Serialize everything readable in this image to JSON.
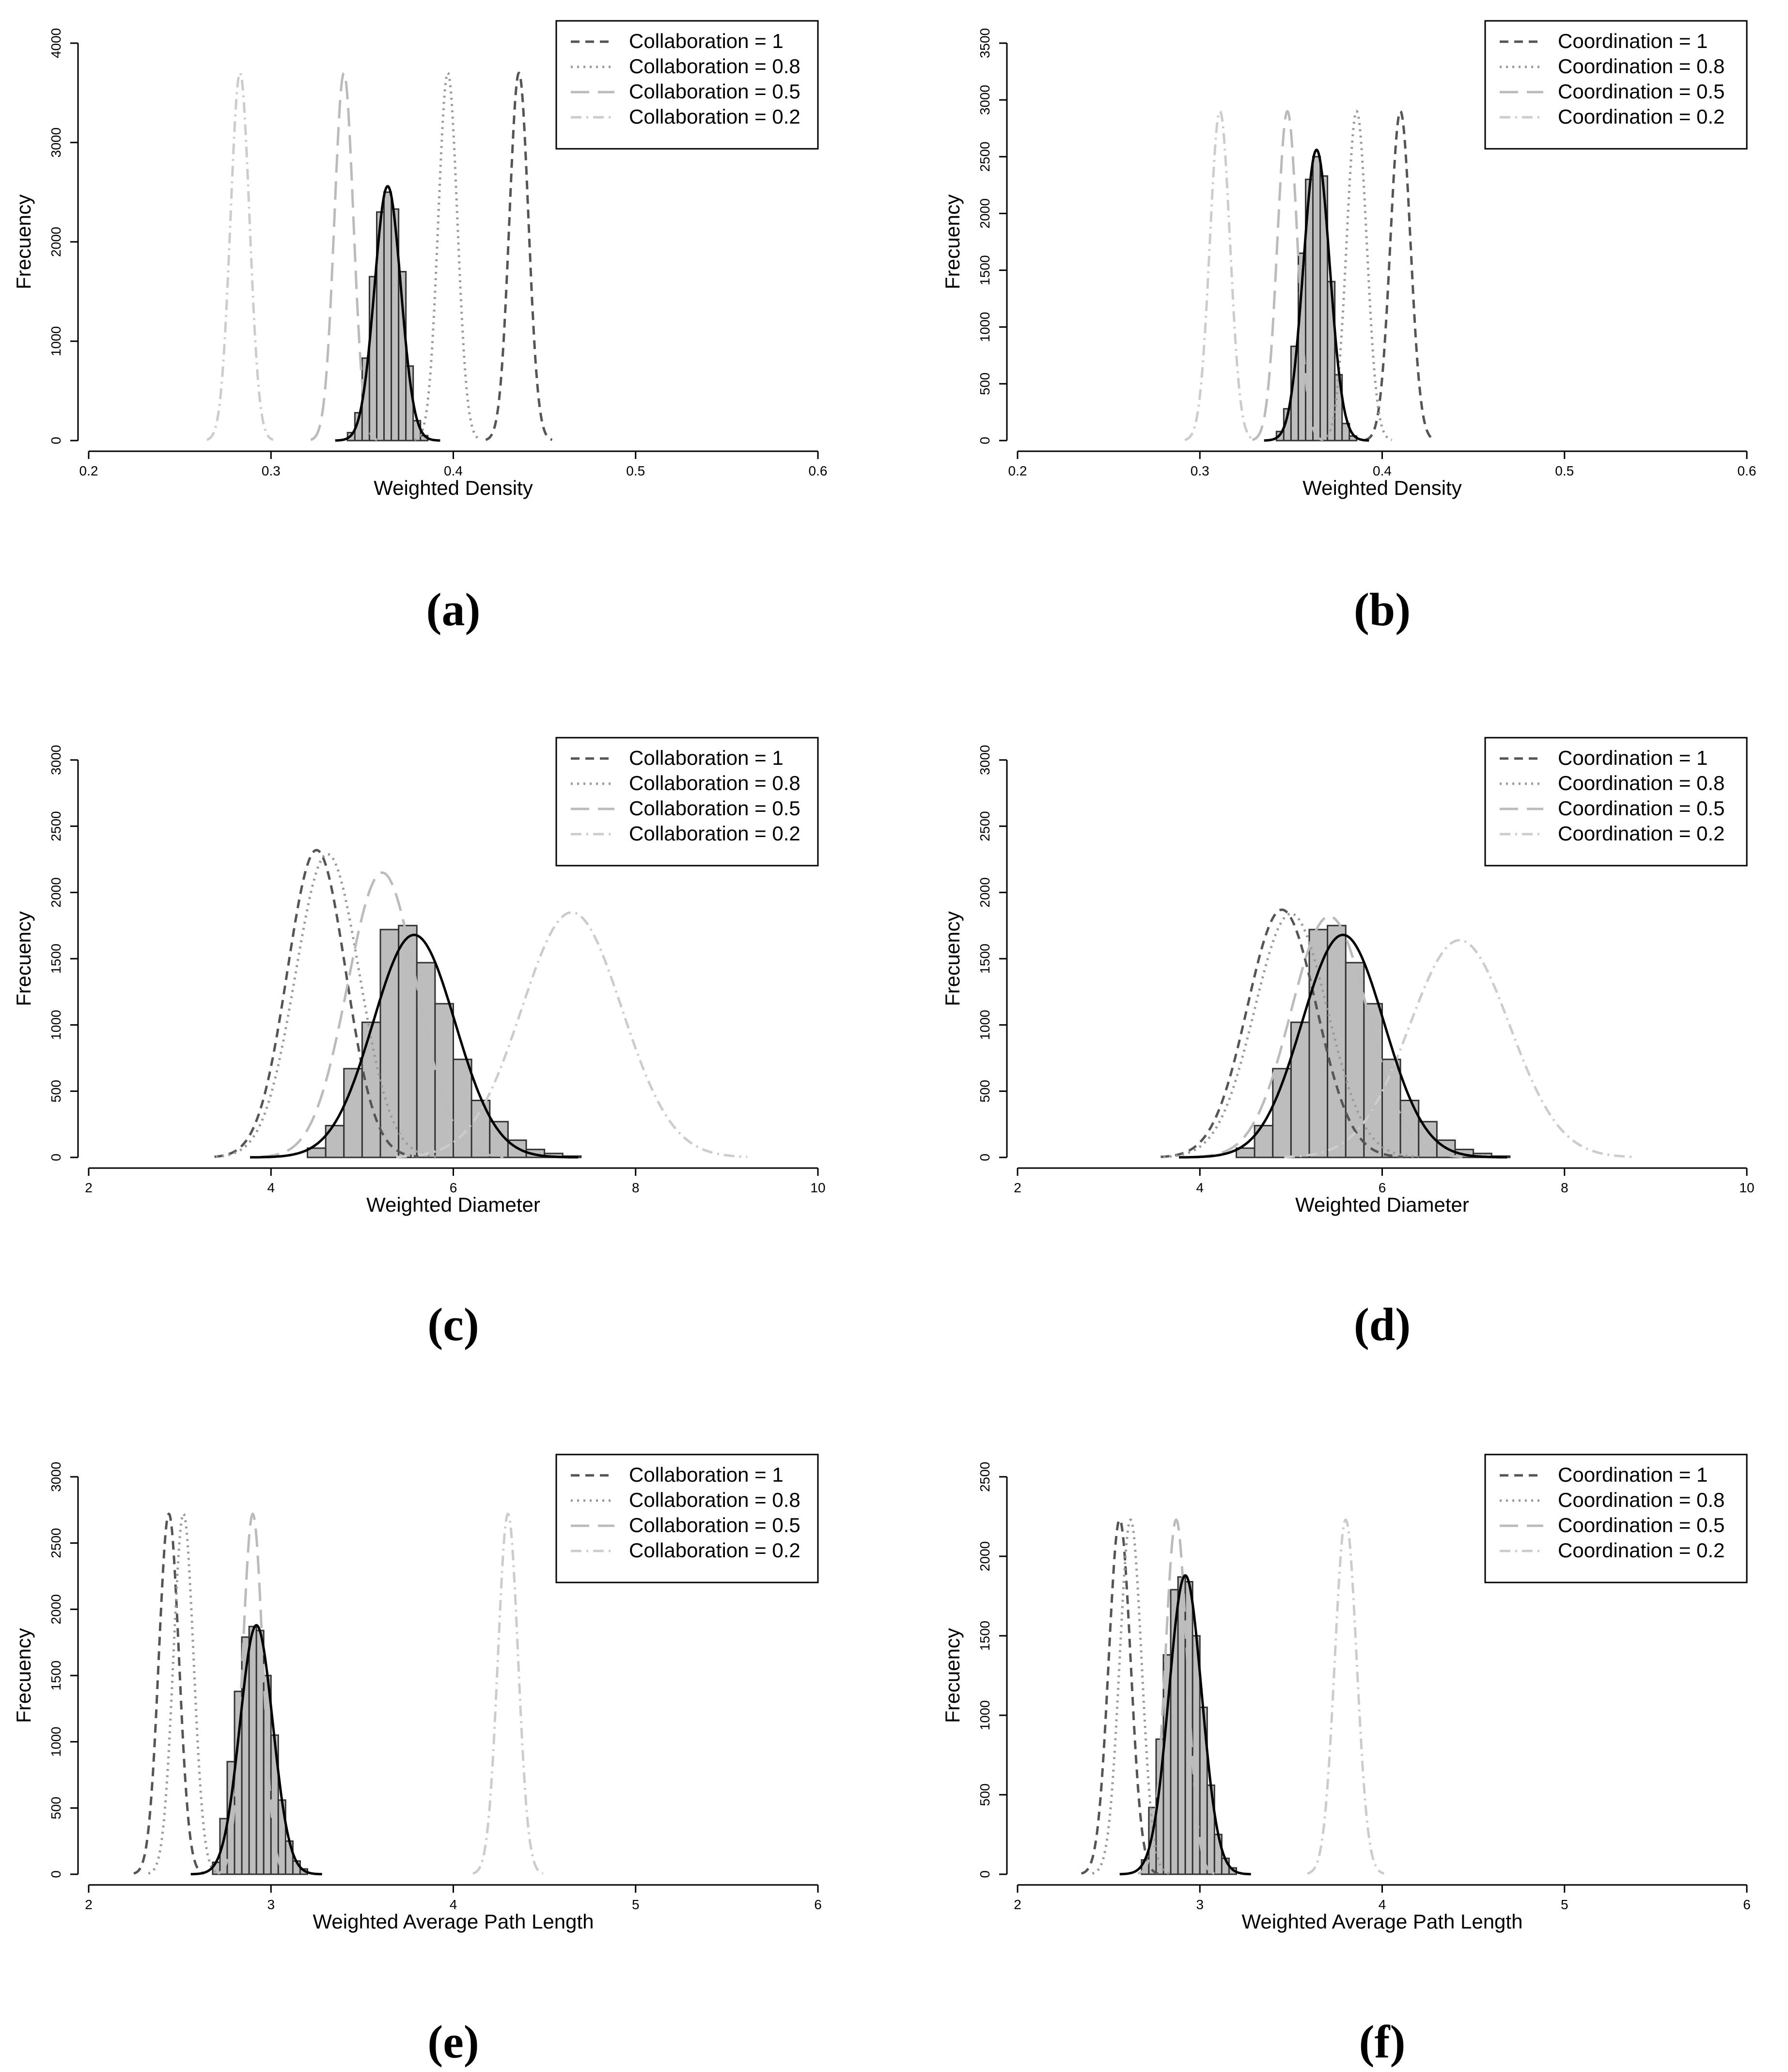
{
  "chart_data": [
    {
      "type": "histogram",
      "panel": "(a)",
      "xlabel": "Weighted Density",
      "ylabel": "Frecuency",
      "xlim": [
        0.2,
        0.6
      ],
      "ylim": [
        0,
        4000
      ],
      "xticks": [
        "0.2",
        "0.3",
        "0.4",
        "0.5",
        "0.6"
      ],
      "yticks": [
        "0",
        "1000",
        "2000",
        "3000",
        "4000"
      ],
      "legend_position": "top-right",
      "series": [
        {
          "name": "Collaboration = 1",
          "style": "dashed",
          "color": "#555555",
          "mean": 0.436,
          "sd": 0.0052,
          "peak": 3700
        },
        {
          "name": "Collaboration = 0.8",
          "style": "dotted",
          "color": "#999999",
          "mean": 0.397,
          "sd": 0.0052,
          "peak": 3700
        },
        {
          "name": "Collaboration = 0.5",
          "style": "longdash",
          "color": "#bbbbbb",
          "mean": 0.34,
          "sd": 0.0052,
          "peak": 3700
        },
        {
          "name": "Collaboration = 0.2",
          "style": "dotdash",
          "color": "#cccccc",
          "mean": 0.283,
          "sd": 0.0052,
          "peak": 3700
        }
      ],
      "histogram": {
        "bin_width": 0.004,
        "bins": [
          {
            "x": 0.344,
            "y": 80
          },
          {
            "x": 0.348,
            "y": 280
          },
          {
            "x": 0.352,
            "y": 830
          },
          {
            "x": 0.356,
            "y": 1650
          },
          {
            "x": 0.36,
            "y": 2300
          },
          {
            "x": 0.364,
            "y": 2500
          },
          {
            "x": 0.368,
            "y": 2330
          },
          {
            "x": 0.372,
            "y": 1700
          },
          {
            "x": 0.376,
            "y": 750
          },
          {
            "x": 0.38,
            "y": 200
          },
          {
            "x": 0.384,
            "y": 50
          }
        ]
      },
      "fit": {
        "mean": 0.364,
        "sd": 0.0072,
        "peak": 2560
      }
    },
    {
      "type": "histogram",
      "panel": "(b)",
      "xlabel": "Weighted Density",
      "ylabel": "Frecuency",
      "xlim": [
        0.2,
        0.6
      ],
      "ylim": [
        0,
        3500
      ],
      "xticks": [
        "0.2",
        "0.3",
        "0.4",
        "0.5",
        "0.6"
      ],
      "yticks": [
        "0",
        "500",
        "1000",
        "1500",
        "2000",
        "2500",
        "3000",
        "3500"
      ],
      "legend_position": "top-right",
      "series": [
        {
          "name": "Coordination = 1",
          "style": "dashed",
          "color": "#555555",
          "mean": 0.41,
          "sd": 0.0055,
          "peak": 2900
        },
        {
          "name": "Coordination = 0.8",
          "style": "dotted",
          "color": "#999999",
          "mean": 0.386,
          "sd": 0.0055,
          "peak": 2900
        },
        {
          "name": "Coordination = 0.5",
          "style": "longdash",
          "color": "#bbbbbb",
          "mean": 0.348,
          "sd": 0.0055,
          "peak": 2900
        },
        {
          "name": "Coordination = 0.2",
          "style": "dotdash",
          "color": "#cccccc",
          "mean": 0.311,
          "sd": 0.0055,
          "peak": 2900
        }
      ],
      "histogram": {
        "bin_width": 0.004,
        "bins": [
          {
            "x": 0.344,
            "y": 80
          },
          {
            "x": 0.348,
            "y": 280
          },
          {
            "x": 0.352,
            "y": 830
          },
          {
            "x": 0.356,
            "y": 1650
          },
          {
            "x": 0.36,
            "y": 2300
          },
          {
            "x": 0.364,
            "y": 2500
          },
          {
            "x": 0.368,
            "y": 2330
          },
          {
            "x": 0.372,
            "y": 1400
          },
          {
            "x": 0.376,
            "y": 580
          },
          {
            "x": 0.38,
            "y": 150
          },
          {
            "x": 0.384,
            "y": 40
          }
        ]
      },
      "fit": {
        "mean": 0.364,
        "sd": 0.0072,
        "peak": 2560
      }
    },
    {
      "type": "histogram",
      "panel": "(c)",
      "xlabel": "Weighted Diameter",
      "ylabel": "Frecuency",
      "xlim": [
        2,
        10
      ],
      "ylim": [
        0,
        3000
      ],
      "xticks": [
        "2",
        "4",
        "6",
        "8",
        "10"
      ],
      "yticks": [
        "0",
        "500",
        "1000",
        "1500",
        "2000",
        "2500",
        "3000"
      ],
      "legend_position": "top-right",
      "series": [
        {
          "name": "Collaboration = 1",
          "style": "dashed",
          "color": "#555555",
          "mean": 4.5,
          "sd": 0.32,
          "peak": 2320
        },
        {
          "name": "Collaboration = 0.8",
          "style": "dotted",
          "color": "#999999",
          "mean": 4.62,
          "sd": 0.35,
          "peak": 2290
        },
        {
          "name": "Collaboration = 0.5",
          "style": "longdash",
          "color": "#bbbbbb",
          "mean": 5.22,
          "sd": 0.38,
          "peak": 2150
        },
        {
          "name": "Collaboration = 0.2",
          "style": "dotdash",
          "color": "#cccccc",
          "mean": 7.3,
          "sd": 0.55,
          "peak": 1850
        }
      ],
      "histogram": {
        "bin_width": 0.2,
        "bins": [
          {
            "x": 4.5,
            "y": 70
          },
          {
            "x": 4.7,
            "y": 240
          },
          {
            "x": 4.9,
            "y": 670
          },
          {
            "x": 5.1,
            "y": 1020
          },
          {
            "x": 5.3,
            "y": 1720
          },
          {
            "x": 5.5,
            "y": 1750
          },
          {
            "x": 5.7,
            "y": 1470
          },
          {
            "x": 5.9,
            "y": 1160
          },
          {
            "x": 6.1,
            "y": 740
          },
          {
            "x": 6.3,
            "y": 430
          },
          {
            "x": 6.5,
            "y": 270
          },
          {
            "x": 6.7,
            "y": 130
          },
          {
            "x": 6.9,
            "y": 60
          },
          {
            "x": 7.1,
            "y": 30
          },
          {
            "x": 7.3,
            "y": 10
          }
        ]
      },
      "fit": {
        "mean": 5.57,
        "sd": 0.45,
        "peak": 1680
      }
    },
    {
      "type": "histogram",
      "panel": "(d)",
      "xlabel": "Weighted Diameter",
      "ylabel": "Frecuency",
      "xlim": [
        2,
        10
      ],
      "ylim": [
        0,
        3000
      ],
      "xticks": [
        "2",
        "4",
        "6",
        "8",
        "10"
      ],
      "yticks": [
        "0",
        "500",
        "1000",
        "1500",
        "2000",
        "2500",
        "3000"
      ],
      "legend_position": "top-right",
      "series": [
        {
          "name": "Coordination = 1",
          "style": "dashed",
          "color": "#555555",
          "mean": 4.9,
          "sd": 0.38,
          "peak": 1870
        },
        {
          "name": "Coordination = 0.8",
          "style": "dotted",
          "color": "#999999",
          "mean": 5.0,
          "sd": 0.4,
          "peak": 1840
        },
        {
          "name": "Coordination = 0.5",
          "style": "longdash",
          "color": "#bbbbbb",
          "mean": 5.42,
          "sd": 0.42,
          "peak": 1820
        },
        {
          "name": "Coordination = 0.2",
          "style": "dotdash",
          "color": "#cccccc",
          "mean": 6.85,
          "sd": 0.55,
          "peak": 1640
        }
      ],
      "histogram": {
        "bin_width": 0.2,
        "bins": [
          {
            "x": 4.5,
            "y": 70
          },
          {
            "x": 4.7,
            "y": 240
          },
          {
            "x": 4.9,
            "y": 670
          },
          {
            "x": 5.1,
            "y": 1020
          },
          {
            "x": 5.3,
            "y": 1720
          },
          {
            "x": 5.5,
            "y": 1750
          },
          {
            "x": 5.7,
            "y": 1470
          },
          {
            "x": 5.9,
            "y": 1160
          },
          {
            "x": 6.1,
            "y": 740
          },
          {
            "x": 6.3,
            "y": 430
          },
          {
            "x": 6.5,
            "y": 270
          },
          {
            "x": 6.7,
            "y": 130
          },
          {
            "x": 6.9,
            "y": 60
          },
          {
            "x": 7.1,
            "y": 30
          },
          {
            "x": 7.3,
            "y": 10
          }
        ]
      },
      "fit": {
        "mean": 5.57,
        "sd": 0.45,
        "peak": 1680
      }
    },
    {
      "type": "histogram",
      "panel": "(e)",
      "xlabel": "Weighted Average Path Length",
      "ylabel": "Frecuency",
      "xlim": [
        2,
        6
      ],
      "ylim": [
        0,
        3000
      ],
      "xticks": [
        "2",
        "3",
        "4",
        "5",
        "6"
      ],
      "yticks": [
        "0",
        "500",
        "1000",
        "1500",
        "2000",
        "2500",
        "3000"
      ],
      "legend_position": "top-right",
      "series": [
        {
          "name": "Collaboration = 1",
          "style": "dashed",
          "color": "#555555",
          "mean": 2.44,
          "sd": 0.055,
          "peak": 2720
        },
        {
          "name": "Collaboration = 0.8",
          "style": "dotted",
          "color": "#999999",
          "mean": 2.52,
          "sd": 0.055,
          "peak": 2720
        },
        {
          "name": "Collaboration = 0.5",
          "style": "longdash",
          "color": "#bbbbbb",
          "mean": 2.9,
          "sd": 0.055,
          "peak": 2720
        },
        {
          "name": "Collaboration = 0.2",
          "style": "dotdash",
          "color": "#cccccc",
          "mean": 4.3,
          "sd": 0.055,
          "peak": 2720
        }
      ],
      "histogram": {
        "bin_width": 0.04,
        "bins": [
          {
            "x": 2.7,
            "y": 90
          },
          {
            "x": 2.74,
            "y": 420
          },
          {
            "x": 2.78,
            "y": 850
          },
          {
            "x": 2.82,
            "y": 1380
          },
          {
            "x": 2.86,
            "y": 1790
          },
          {
            "x": 2.9,
            "y": 1870
          },
          {
            "x": 2.94,
            "y": 1840
          },
          {
            "x": 2.98,
            "y": 1500
          },
          {
            "x": 3.02,
            "y": 1050
          },
          {
            "x": 3.06,
            "y": 560
          },
          {
            "x": 3.1,
            "y": 250
          },
          {
            "x": 3.14,
            "y": 100
          },
          {
            "x": 3.18,
            "y": 40
          }
        ]
      },
      "fit": {
        "mean": 2.92,
        "sd": 0.09,
        "peak": 1880
      }
    },
    {
      "type": "histogram",
      "panel": "(f)",
      "xlabel": "Weighted Average Path Length",
      "ylabel": "Frecuency",
      "xlim": [
        2,
        6
      ],
      "ylim": [
        0,
        2500
      ],
      "xticks": [
        "2",
        "3",
        "4",
        "5",
        "6"
      ],
      "yticks": [
        "0",
        "500",
        "1000",
        "1500",
        "2000",
        "2500"
      ],
      "legend_position": "top-right",
      "series": [
        {
          "name": "Coordination = 1",
          "style": "dashed",
          "color": "#555555",
          "mean": 2.56,
          "sd": 0.06,
          "peak": 2230
        },
        {
          "name": "Coordination = 0.8",
          "style": "dotted",
          "color": "#999999",
          "mean": 2.62,
          "sd": 0.06,
          "peak": 2230
        },
        {
          "name": "Coordination = 0.5",
          "style": "longdash",
          "color": "#bbbbbb",
          "mean": 2.87,
          "sd": 0.06,
          "peak": 2230
        },
        {
          "name": "Coordination = 0.2",
          "style": "dotdash",
          "color": "#cccccc",
          "mean": 3.8,
          "sd": 0.06,
          "peak": 2230
        }
      ],
      "histogram": {
        "bin_width": 0.04,
        "bins": [
          {
            "x": 2.7,
            "y": 90
          },
          {
            "x": 2.74,
            "y": 420
          },
          {
            "x": 2.78,
            "y": 850
          },
          {
            "x": 2.82,
            "y": 1380
          },
          {
            "x": 2.86,
            "y": 1790
          },
          {
            "x": 2.9,
            "y": 1870
          },
          {
            "x": 2.94,
            "y": 1840
          },
          {
            "x": 2.98,
            "y": 1500
          },
          {
            "x": 3.02,
            "y": 1050
          },
          {
            "x": 3.06,
            "y": 560
          },
          {
            "x": 3.1,
            "y": 250
          },
          {
            "x": 3.14,
            "y": 100
          },
          {
            "x": 3.18,
            "y": 40
          }
        ]
      },
      "fit": {
        "mean": 2.92,
        "sd": 0.09,
        "peak": 1880
      }
    }
  ]
}
